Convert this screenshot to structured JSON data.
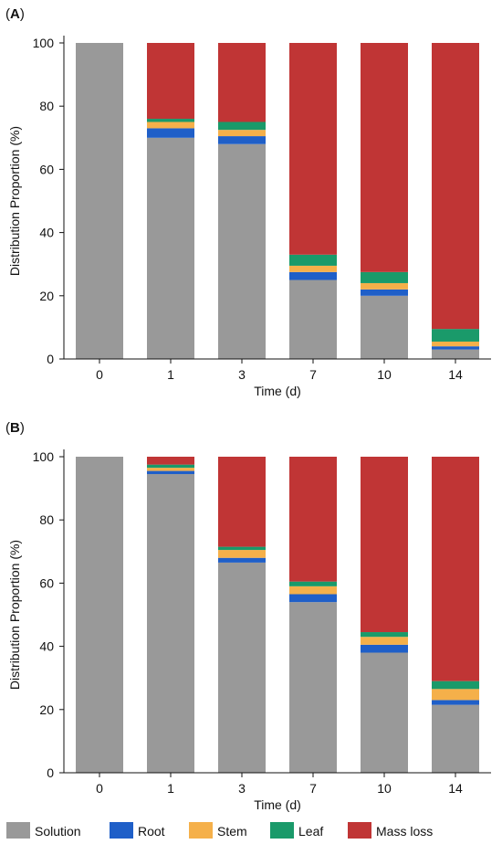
{
  "legend": [
    {
      "name": "Solution",
      "color": "#999999"
    },
    {
      "name": "Root",
      "color": "#1f5fc8"
    },
    {
      "name": "Stem",
      "color": "#f5b04a"
    },
    {
      "name": "Leaf",
      "color": "#1a9a6a"
    },
    {
      "name": "Mass loss",
      "color": "#c03535"
    }
  ],
  "chart_data": [
    {
      "panel": "A",
      "type": "bar",
      "stacked": true,
      "categories": [
        "0",
        "1",
        "3",
        "7",
        "10",
        "14"
      ],
      "xlabel": "Time (d)",
      "ylabel": "Distribution Proportion (%)",
      "ylim": [
        0,
        100
      ],
      "yticks": [
        0,
        20,
        40,
        60,
        80,
        100
      ],
      "grid": false,
      "series": [
        {
          "name": "Solution",
          "color": "#999999",
          "values": [
            100,
            70,
            68,
            25,
            20,
            3
          ]
        },
        {
          "name": "Root",
          "color": "#1f5fc8",
          "values": [
            0,
            3,
            2.5,
            2.5,
            2,
            1
          ]
        },
        {
          "name": "Stem",
          "color": "#f5b04a",
          "values": [
            0,
            2,
            2,
            2,
            2,
            1.5
          ]
        },
        {
          "name": "Leaf",
          "color": "#1a9a6a",
          "values": [
            0,
            1,
            2.5,
            3.5,
            3.5,
            4
          ]
        },
        {
          "name": "Mass loss",
          "color": "#c03535",
          "values": [
            0,
            24,
            25,
            67,
            72.5,
            90.5
          ]
        }
      ]
    },
    {
      "panel": "B",
      "type": "bar",
      "stacked": true,
      "categories": [
        "0",
        "1",
        "3",
        "7",
        "10",
        "14"
      ],
      "xlabel": "Time (d)",
      "ylabel": "Distribution Proportion (%)",
      "ylim": [
        0,
        100
      ],
      "yticks": [
        0,
        20,
        40,
        60,
        80,
        100
      ],
      "grid": false,
      "series": [
        {
          "name": "Solution",
          "color": "#999999",
          "values": [
            100,
            94.5,
            66.5,
            54,
            38,
            21.5
          ]
        },
        {
          "name": "Root",
          "color": "#1f5fc8",
          "values": [
            0,
            1,
            1.5,
            2.5,
            2.5,
            1.5
          ]
        },
        {
          "name": "Stem",
          "color": "#f5b04a",
          "values": [
            0,
            1,
            2.5,
            2.5,
            2.5,
            3.5
          ]
        },
        {
          "name": "Leaf",
          "color": "#1a9a6a",
          "values": [
            0,
            1,
            1,
            1.5,
            1.5,
            2.5
          ]
        },
        {
          "name": "Mass loss",
          "color": "#c03535",
          "values": [
            0,
            2.5,
            28.5,
            39.5,
            55.5,
            71
          ]
        }
      ]
    }
  ]
}
